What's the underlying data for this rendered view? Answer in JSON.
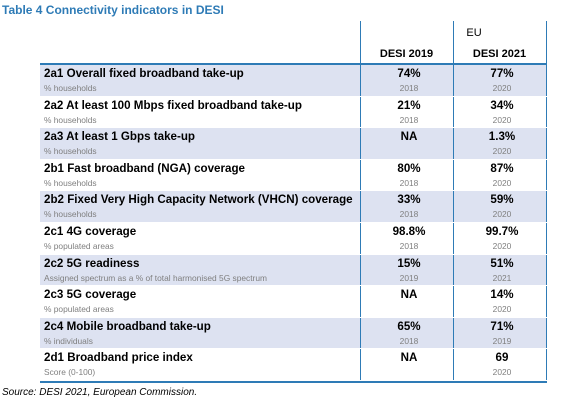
{
  "title": "Table 4 Connectivity indicators in DESI",
  "header": {
    "group": "EU",
    "col1": "DESI 2019",
    "col2": "DESI 2021"
  },
  "rows": [
    {
      "indicator": "2a1 Overall fixed broadband take-up",
      "unit": "% households",
      "v2019": "74%",
      "y2019": "2018",
      "v2021": "77%",
      "y2021": "2020"
    },
    {
      "indicator": "2a2 At least 100 Mbps fixed broadband take-up",
      "unit": "% households",
      "v2019": "21%",
      "y2019": "2018",
      "v2021": "34%",
      "y2021": "2020"
    },
    {
      "indicator": "2a3 At least 1 Gbps take-up",
      "unit": "% households",
      "v2019": "NA",
      "y2019": "",
      "v2021": "1.3%",
      "y2021": "2020"
    },
    {
      "indicator": "2b1 Fast broadband (NGA) coverage",
      "unit": "% households",
      "v2019": "80%",
      "y2019": "2018",
      "v2021": "87%",
      "y2021": "2020"
    },
    {
      "indicator": "2b2 Fixed Very High Capacity Network (VHCN) coverage",
      "unit": "% households",
      "v2019": "33%",
      "y2019": "2018",
      "v2021": "59%",
      "y2021": "2020"
    },
    {
      "indicator": "2c1 4G coverage",
      "unit": "% populated areas",
      "v2019": "98.8%",
      "y2019": "2018",
      "v2021": "99.7%",
      "y2021": "2020"
    },
    {
      "indicator": "2c2 5G readiness",
      "unit": "Assigned spectrum as a % of total harmonised 5G spectrum",
      "v2019": "15%",
      "y2019": "2019",
      "v2021": "51%",
      "y2021": "2021"
    },
    {
      "indicator": "2c3 5G coverage",
      "unit": "% populated areas",
      "v2019": "NA",
      "y2019": "",
      "v2021": "14%",
      "y2021": "2020"
    },
    {
      "indicator": "2c4 Mobile broadband take-up",
      "unit": "% individuals",
      "v2019": "65%",
      "y2019": "2018",
      "v2021": "71%",
      "y2021": "2019"
    },
    {
      "indicator": "2d1 Broadband price index",
      "unit": "Score (0-100)",
      "v2019": "NA",
      "y2019": "",
      "v2021": "69",
      "y2021": "2020"
    }
  ],
  "source": "Source: DESI 2021, European Commission.",
  "colors": {
    "accent": "#2e7bb6",
    "shade": "#dde2f1"
  }
}
